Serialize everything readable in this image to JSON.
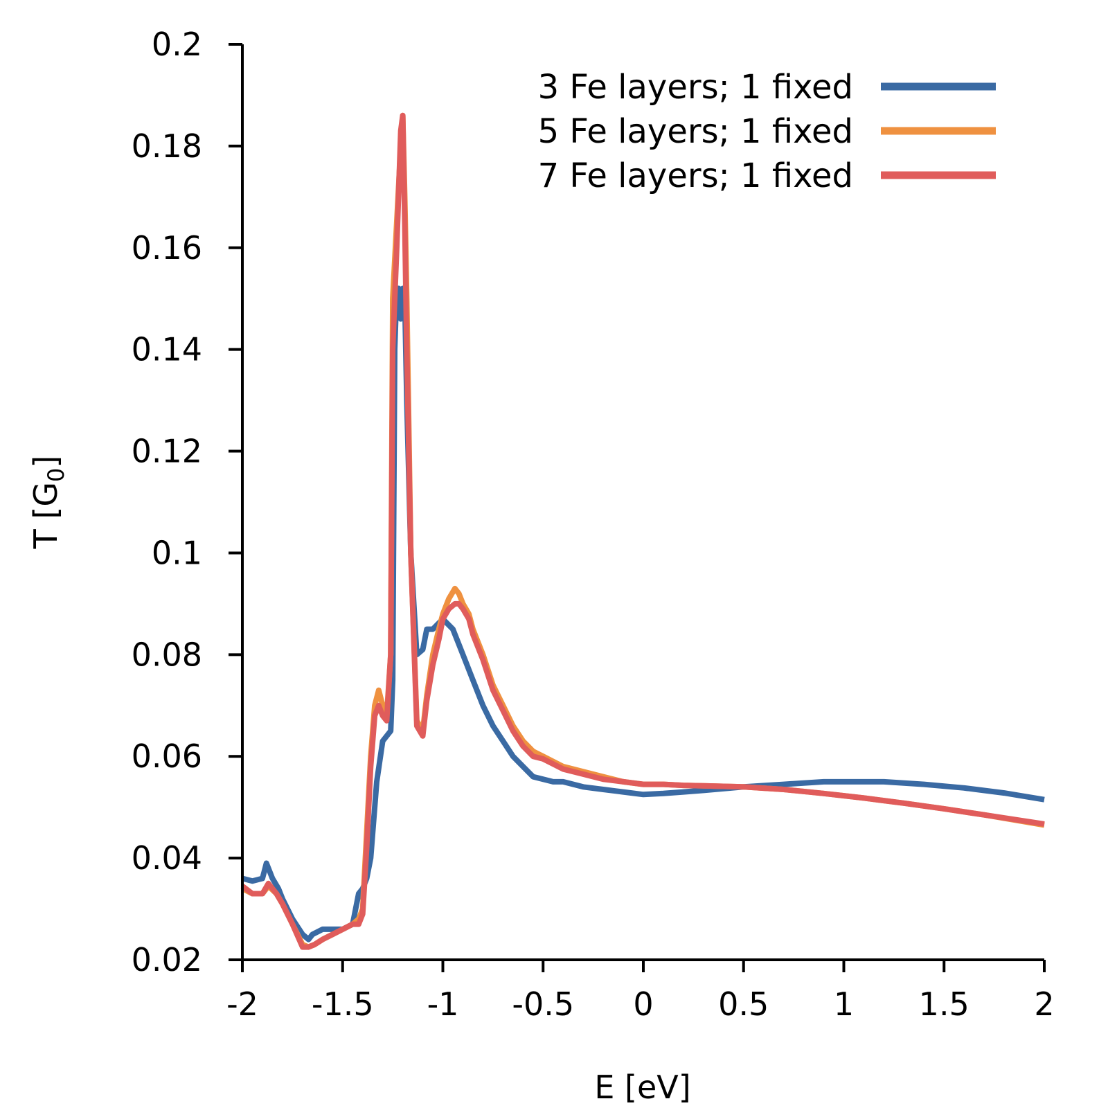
{
  "chart_data": {
    "type": "line",
    "title": "",
    "xlabel": "E [eV]",
    "ylabel_main": "T [G",
    "ylabel_sub": "0",
    "ylabel_close": "]",
    "xlim": [
      -2,
      2
    ],
    "ylim": [
      0.02,
      0.2
    ],
    "xticks": [
      -2,
      -1.5,
      -1,
      -0.5,
      0,
      0.5,
      1,
      1.5,
      2
    ],
    "xtick_labels": [
      "-2",
      "-1.5",
      "-1",
      "-0.5",
      "0",
      "0.5",
      "1",
      "1.5",
      "2"
    ],
    "yticks": [
      0.02,
      0.04,
      0.06,
      0.08,
      0.1,
      0.12,
      0.14,
      0.16,
      0.18,
      0.2
    ],
    "ytick_labels": [
      "0.02",
      "0.04",
      "0.06",
      "0.08",
      "0.1",
      "0.12",
      "0.14",
      "0.16",
      "0.18",
      "0.2"
    ],
    "grid": false,
    "legend_position": "top-right",
    "series": [
      {
        "name": "3 Fe layers; 1 fixed",
        "color": "#3a6aa3",
        "x": [
          -2.0,
          -1.95,
          -1.9,
          -1.88,
          -1.85,
          -1.82,
          -1.8,
          -1.75,
          -1.7,
          -1.67,
          -1.65,
          -1.6,
          -1.55,
          -1.5,
          -1.45,
          -1.42,
          -1.4,
          -1.38,
          -1.36,
          -1.33,
          -1.3,
          -1.28,
          -1.26,
          -1.25,
          -1.24,
          -1.23,
          -1.22,
          -1.21,
          -1.2,
          -1.19,
          -1.18,
          -1.16,
          -1.13,
          -1.1,
          -1.08,
          -1.05,
          -1.0,
          -0.95,
          -0.9,
          -0.85,
          -0.8,
          -0.75,
          -0.7,
          -0.65,
          -0.6,
          -0.55,
          -0.5,
          -0.45,
          -0.4,
          -0.3,
          -0.2,
          -0.1,
          0.0,
          0.1,
          0.2,
          0.3,
          0.5,
          0.7,
          0.9,
          1.0,
          1.1,
          1.2,
          1.4,
          1.6,
          1.8,
          2.0
        ],
        "y": [
          0.036,
          0.0355,
          0.036,
          0.039,
          0.036,
          0.034,
          0.032,
          0.028,
          0.025,
          0.024,
          0.025,
          0.026,
          0.026,
          0.026,
          0.027,
          0.033,
          0.034,
          0.036,
          0.04,
          0.055,
          0.063,
          0.064,
          0.065,
          0.075,
          0.14,
          0.152,
          0.152,
          0.146,
          0.152,
          0.15,
          0.13,
          0.1,
          0.08,
          0.081,
          0.085,
          0.085,
          0.087,
          0.085,
          0.08,
          0.075,
          0.07,
          0.066,
          0.063,
          0.06,
          0.058,
          0.056,
          0.0555,
          0.055,
          0.055,
          0.054,
          0.0535,
          0.053,
          0.0525,
          0.0527,
          0.053,
          0.0533,
          0.054,
          0.0545,
          0.055,
          0.055,
          0.055,
          0.055,
          0.0545,
          0.0538,
          0.0528,
          0.0515
        ]
      },
      {
        "name": "5 Fe layers; 1 fixed",
        "color": "#ef9140",
        "x": [
          -2.0,
          -1.95,
          -1.9,
          -1.87,
          -1.83,
          -1.8,
          -1.75,
          -1.7,
          -1.67,
          -1.64,
          -1.6,
          -1.55,
          -1.5,
          -1.45,
          -1.42,
          -1.4,
          -1.38,
          -1.36,
          -1.34,
          -1.32,
          -1.3,
          -1.28,
          -1.26,
          -1.25,
          -1.23,
          -1.21,
          -1.2,
          -1.19,
          -1.18,
          -1.16,
          -1.13,
          -1.1,
          -1.08,
          -1.05,
          -1.02,
          -1.0,
          -0.97,
          -0.94,
          -0.92,
          -0.9,
          -0.87,
          -0.85,
          -0.8,
          -0.75,
          -0.7,
          -0.65,
          -0.6,
          -0.55,
          -0.5,
          -0.45,
          -0.4,
          -0.3,
          -0.2,
          -0.1,
          0.0,
          0.1,
          0.2,
          0.3,
          0.5,
          0.7,
          0.9,
          1.1,
          1.3,
          1.5,
          1.7,
          2.0
        ],
        "y": [
          0.034,
          0.033,
          0.033,
          0.0345,
          0.033,
          0.031,
          0.027,
          0.023,
          0.0225,
          0.023,
          0.024,
          0.025,
          0.026,
          0.027,
          0.028,
          0.03,
          0.045,
          0.06,
          0.07,
          0.073,
          0.07,
          0.068,
          0.08,
          0.15,
          0.165,
          0.18,
          0.186,
          0.17,
          0.15,
          0.1,
          0.067,
          0.065,
          0.072,
          0.08,
          0.085,
          0.088,
          0.091,
          0.093,
          0.092,
          0.09,
          0.088,
          0.085,
          0.08,
          0.074,
          0.07,
          0.066,
          0.063,
          0.061,
          0.06,
          0.059,
          0.058,
          0.057,
          0.056,
          0.055,
          0.0545,
          0.0545,
          0.0543,
          0.0542,
          0.054,
          0.0535,
          0.0527,
          0.0518,
          0.0508,
          0.0497,
          0.0485,
          0.0465
        ]
      },
      {
        "name": "7 Fe layers; 1 fixed",
        "color": "#e05c5b",
        "x": [
          -2.0,
          -1.95,
          -1.9,
          -1.87,
          -1.83,
          -1.8,
          -1.75,
          -1.7,
          -1.67,
          -1.64,
          -1.6,
          -1.55,
          -1.5,
          -1.45,
          -1.42,
          -1.4,
          -1.38,
          -1.36,
          -1.34,
          -1.32,
          -1.3,
          -1.28,
          -1.26,
          -1.25,
          -1.23,
          -1.21,
          -1.2,
          -1.19,
          -1.18,
          -1.16,
          -1.13,
          -1.1,
          -1.08,
          -1.05,
          -1.02,
          -1.0,
          -0.97,
          -0.94,
          -0.92,
          -0.9,
          -0.87,
          -0.85,
          -0.8,
          -0.75,
          -0.7,
          -0.65,
          -0.6,
          -0.55,
          -0.5,
          -0.45,
          -0.4,
          -0.3,
          -0.2,
          -0.1,
          0.0,
          0.1,
          0.2,
          0.3,
          0.5,
          0.7,
          0.9,
          1.1,
          1.3,
          1.5,
          1.7,
          2.0
        ],
        "y": [
          0.0345,
          0.033,
          0.033,
          0.035,
          0.033,
          0.031,
          0.027,
          0.0225,
          0.0225,
          0.023,
          0.024,
          0.025,
          0.026,
          0.027,
          0.027,
          0.029,
          0.042,
          0.058,
          0.068,
          0.07,
          0.068,
          0.067,
          0.08,
          0.14,
          0.16,
          0.183,
          0.186,
          0.165,
          0.14,
          0.1,
          0.066,
          0.064,
          0.071,
          0.078,
          0.083,
          0.087,
          0.089,
          0.09,
          0.09,
          0.089,
          0.087,
          0.084,
          0.079,
          0.073,
          0.069,
          0.065,
          0.062,
          0.06,
          0.0595,
          0.0585,
          0.0575,
          0.0565,
          0.0555,
          0.055,
          0.0545,
          0.0545,
          0.0543,
          0.0542,
          0.054,
          0.0535,
          0.0527,
          0.0518,
          0.0508,
          0.0497,
          0.0485,
          0.0467
        ]
      }
    ]
  }
}
